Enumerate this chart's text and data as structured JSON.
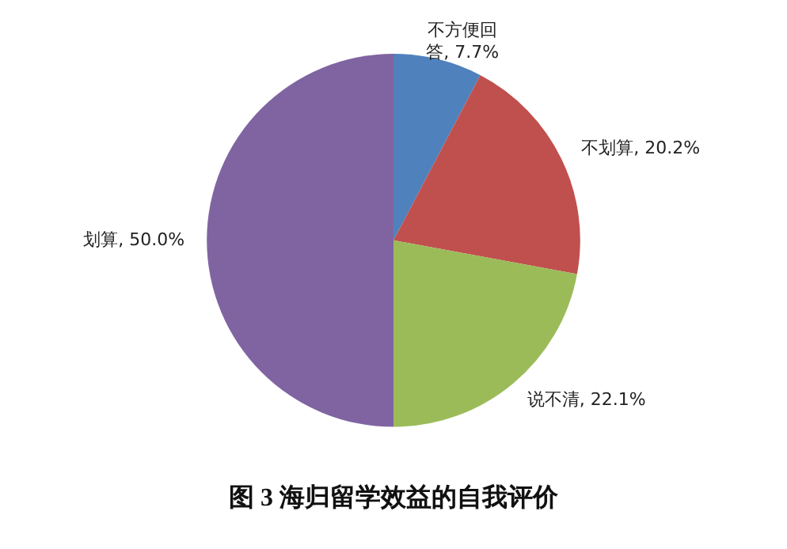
{
  "chart_data": {
    "type": "pie",
    "title": "图 3 海归留学效益的自我评价",
    "categories": [
      "不方便回答",
      "不划算",
      "说不清",
      "划算"
    ],
    "values": [
      7.7,
      20.2,
      22.1,
      50.0
    ],
    "value_labels": [
      "7.7%",
      "20.2%",
      "22.1%",
      "50.0%"
    ],
    "colors": [
      "#4f81bd",
      "#c0504d",
      "#9bbb59",
      "#8064a2"
    ],
    "legend": false
  }
}
